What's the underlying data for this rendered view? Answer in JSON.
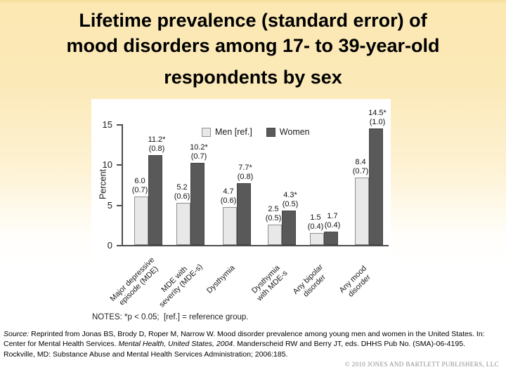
{
  "slide": {
    "title_lines": [
      "Lifetime prevalence (standard error) of",
      "mood disorders among 17- to 39-year-old",
      "respondents by sex"
    ],
    "source": {
      "label": "Source:",
      "text_before_italic": " Reprinted from Jonas BS, Brody D, Roper M, Narrow W. Mood disorder prevalence among young men and women in the United States. In: Center for Mental Health Services. ",
      "italic_title": "Mental Health, United States, 2004",
      "text_after_italic": ". Manderscheid RW and Berry JT, eds. DHHS Pub No. (SMA)-06-4195. Rockville, MD: Substance Abuse and Mental Health Services Administration; 2006:185."
    },
    "copyright": "© 2010 JONES AND BARTLETT PUBLISHERS, LLC"
  },
  "chart_data": {
    "type": "bar",
    "title": "",
    "xlabel": "",
    "ylabel": "Percent",
    "ylim": [
      0,
      15
    ],
    "yticks": [
      0,
      5,
      10,
      15
    ],
    "grid": false,
    "legend_position": "top-center-inside",
    "categories": [
      "Major depressive\nepisode (MDE)",
      "MDE with\nseverity (MDE-s)",
      "Dysthymia",
      "Dysthymia\nwith MDE-s",
      "Any bipolar\ndisorder",
      "Any mood\ndisorder"
    ],
    "series": [
      {
        "name": "Men [ref.]",
        "color": "#e8e8e8",
        "border": "#8f8f8f",
        "values": [
          6.0,
          5.2,
          4.7,
          2.5,
          1.5,
          8.4
        ],
        "se": [
          0.7,
          0.6,
          0.6,
          0.5,
          0.4,
          0.7
        ],
        "significant": [
          false,
          false,
          false,
          false,
          false,
          false
        ]
      },
      {
        "name": "Women",
        "color": "#595959",
        "border": "#454545",
        "values": [
          11.2,
          10.2,
          7.7,
          4.3,
          1.7,
          14.5
        ],
        "se": [
          0.8,
          0.7,
          0.8,
          0.5,
          0.4,
          1.0
        ],
        "significant": [
          true,
          true,
          true,
          true,
          false,
          true
        ]
      }
    ],
    "notes": "NOTES: *p < 0.05;  [ref.] = reference group."
  }
}
